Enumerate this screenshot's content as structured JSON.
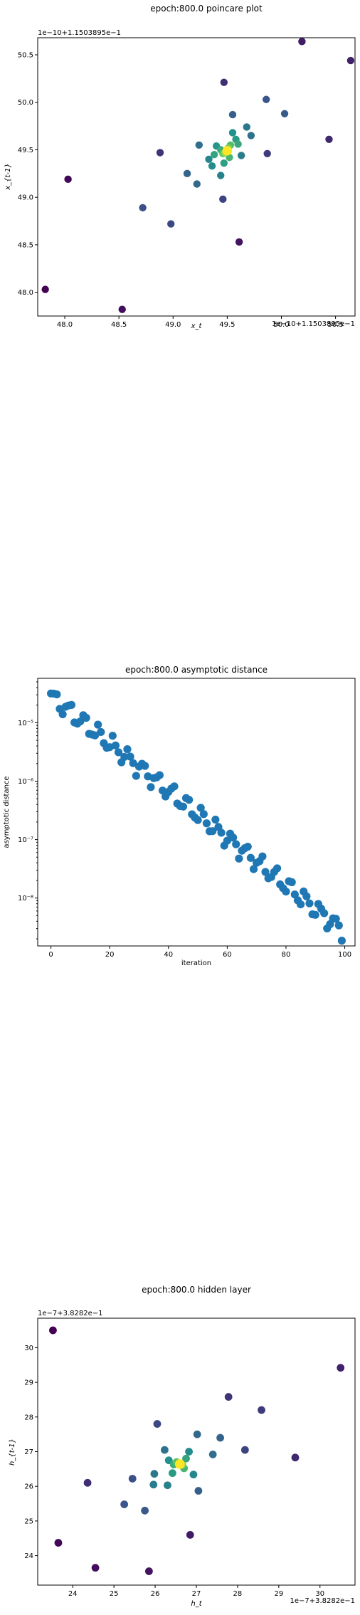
{
  "chart_data": [
    {
      "type": "scatter",
      "title": "epoch:800.0 poincare plot",
      "xlabel": "x_t",
      "ylabel": "x_{t-1}",
      "x_offset_text": "1e−10+1.1503895e−1",
      "y_offset_text": "1e−10+1.1503895e−1",
      "xlim": [
        47.75,
        50.68
      ],
      "ylim": [
        47.75,
        50.68
      ],
      "xticks": [
        48.0,
        48.5,
        49.0,
        49.5,
        50.0,
        50.5
      ],
      "xtick_labels": [
        "48.0",
        "48.5",
        "49.0",
        "49.5",
        "50.0",
        "50.5"
      ],
      "yticks": [
        48.0,
        48.5,
        49.0,
        49.5,
        50.0,
        50.5
      ],
      "ytick_labels": [
        "48.0",
        "48.5",
        "49.0",
        "49.5",
        "50.0",
        "50.5"
      ],
      "color_scale": "viridis (later iterations brighter)",
      "points": [
        {
          "x": 47.82,
          "y": 48.03,
          "c": 0.0
        },
        {
          "x": 48.03,
          "y": 49.19,
          "c": 0.02
        },
        {
          "x": 48.53,
          "y": 47.82,
          "c": 0.04
        },
        {
          "x": 49.61,
          "y": 48.53,
          "c": 0.06
        },
        {
          "x": 50.19,
          "y": 50.64,
          "c": 0.08
        },
        {
          "x": 50.64,
          "y": 50.44,
          "c": 0.1
        },
        {
          "x": 50.44,
          "y": 49.61,
          "c": 0.12
        },
        {
          "x": 49.47,
          "y": 50.21,
          "c": 0.14
        },
        {
          "x": 48.88,
          "y": 49.47,
          "c": 0.16
        },
        {
          "x": 49.87,
          "y": 49.46,
          "c": 0.18
        },
        {
          "x": 49.46,
          "y": 48.98,
          "c": 0.2
        },
        {
          "x": 48.98,
          "y": 48.72,
          "c": 0.22
        },
        {
          "x": 48.72,
          "y": 48.89,
          "c": 0.24
        },
        {
          "x": 49.86,
          "y": 50.03,
          "c": 0.26
        },
        {
          "x": 50.03,
          "y": 49.88,
          "c": 0.28
        },
        {
          "x": 49.55,
          "y": 49.87,
          "c": 0.3
        },
        {
          "x": 49.13,
          "y": 49.25,
          "c": 0.32
        },
        {
          "x": 49.22,
          "y": 49.14,
          "c": 0.34
        },
        {
          "x": 49.24,
          "y": 49.55,
          "c": 0.36
        },
        {
          "x": 49.72,
          "y": 49.65,
          "c": 0.38
        },
        {
          "x": 49.68,
          "y": 49.74,
          "c": 0.4
        },
        {
          "x": 49.63,
          "y": 49.44,
          "c": 0.42
        },
        {
          "x": 49.44,
          "y": 49.23,
          "c": 0.44
        },
        {
          "x": 49.33,
          "y": 49.4,
          "c": 0.46
        },
        {
          "x": 49.36,
          "y": 49.33,
          "c": 0.48
        },
        {
          "x": 49.55,
          "y": 49.68,
          "c": 0.5
        },
        {
          "x": 49.4,
          "y": 49.54,
          "c": 0.52
        },
        {
          "x": 49.58,
          "y": 49.61,
          "c": 0.54
        },
        {
          "x": 49.47,
          "y": 49.36,
          "c": 0.56
        },
        {
          "x": 49.38,
          "y": 49.45,
          "c": 0.58
        },
        {
          "x": 49.6,
          "y": 49.56,
          "c": 0.6
        },
        {
          "x": 49.44,
          "y": 49.5,
          "c": 0.62
        },
        {
          "x": 49.52,
          "y": 49.42,
          "c": 0.66
        },
        {
          "x": 49.53,
          "y": 49.55,
          "c": 0.7
        },
        {
          "x": 49.46,
          "y": 49.46,
          "c": 0.74
        },
        {
          "x": 49.51,
          "y": 49.52,
          "c": 0.8
        },
        {
          "x": 49.48,
          "y": 49.47,
          "c": 0.86
        },
        {
          "x": 49.5,
          "y": 49.49,
          "c": 1.0
        }
      ]
    },
    {
      "type": "scatter",
      "title": "epoch:800.0 asymptotic distance",
      "xlabel": "iteration",
      "ylabel": "asymptotic distance",
      "y_scale": "log",
      "xlim": [
        -4.5,
        103.5
      ],
      "ylim_log10": [
        -8.82,
        -4.24
      ],
      "xticks": [
        0,
        20,
        40,
        60,
        80,
        100
      ],
      "xtick_labels": [
        "0",
        "20",
        "40",
        "60",
        "80",
        "100"
      ],
      "yticks_log10": [
        -5,
        -6,
        -7,
        -8
      ],
      "ytick_labels": [
        "10⁻⁵",
        "10⁻⁶",
        "10⁻⁷",
        "10⁻⁸"
      ],
      "color": "#1f77b4",
      "series_log10_start": -4.55,
      "series_log10_end": -8.55,
      "n_points": 100
    },
    {
      "type": "scatter",
      "title": "epoch:800.0 hidden layer",
      "xlabel": "h_t",
      "ylabel": "h_{t-1}",
      "x_offset_text": "1e−7+3.8282e−1",
      "y_offset_text": "1e−7+3.8282e−1",
      "xlim": [
        23.15,
        30.85
      ],
      "ylim": [
        23.15,
        30.85
      ],
      "xticks": [
        24,
        25,
        26,
        27,
        28,
        29,
        30
      ],
      "xtick_labels": [
        "24",
        "25",
        "26",
        "27",
        "28",
        "29",
        "30"
      ],
      "yticks": [
        24,
        25,
        26,
        27,
        28,
        29,
        30
      ],
      "ytick_labels": [
        "24",
        "25",
        "26",
        "27",
        "28",
        "29",
        "30"
      ],
      "color_scale": "viridis (later iterations brighter)",
      "points": [
        {
          "x": 23.52,
          "y": 30.5,
          "c": 0.0
        },
        {
          "x": 23.65,
          "y": 24.37,
          "c": 0.02
        },
        {
          "x": 24.55,
          "y": 23.65,
          "c": 0.04
        },
        {
          "x": 25.85,
          "y": 23.55,
          "c": 0.06
        },
        {
          "x": 26.85,
          "y": 24.6,
          "c": 0.08
        },
        {
          "x": 30.5,
          "y": 29.42,
          "c": 0.1
        },
        {
          "x": 29.4,
          "y": 26.83,
          "c": 0.12
        },
        {
          "x": 24.36,
          "y": 26.1,
          "c": 0.14
        },
        {
          "x": 27.78,
          "y": 28.58,
          "c": 0.16
        },
        {
          "x": 28.58,
          "y": 28.2,
          "c": 0.18
        },
        {
          "x": 28.18,
          "y": 27.05,
          "c": 0.2
        },
        {
          "x": 26.05,
          "y": 27.8,
          "c": 0.22
        },
        {
          "x": 25.45,
          "y": 26.22,
          "c": 0.24
        },
        {
          "x": 25.25,
          "y": 25.48,
          "c": 0.26
        },
        {
          "x": 25.75,
          "y": 25.3,
          "c": 0.28
        },
        {
          "x": 27.05,
          "y": 25.87,
          "c": 0.3
        },
        {
          "x": 27.58,
          "y": 27.4,
          "c": 0.32
        },
        {
          "x": 27.02,
          "y": 27.5,
          "c": 0.34
        },
        {
          "x": 27.4,
          "y": 26.92,
          "c": 0.36
        },
        {
          "x": 26.23,
          "y": 27.05,
          "c": 0.38
        },
        {
          "x": 25.98,
          "y": 26.36,
          "c": 0.4
        },
        {
          "x": 25.96,
          "y": 26.05,
          "c": 0.42
        },
        {
          "x": 26.3,
          "y": 26.03,
          "c": 0.44
        },
        {
          "x": 26.93,
          "y": 26.34,
          "c": 0.46
        },
        {
          "x": 26.82,
          "y": 27.0,
          "c": 0.48
        },
        {
          "x": 26.33,
          "y": 26.75,
          "c": 0.5
        },
        {
          "x": 26.42,
          "y": 26.38,
          "c": 0.54
        },
        {
          "x": 26.75,
          "y": 26.8,
          "c": 0.58
        },
        {
          "x": 26.45,
          "y": 26.63,
          "c": 0.62
        },
        {
          "x": 26.7,
          "y": 26.52,
          "c": 0.66
        },
        {
          "x": 26.52,
          "y": 26.7,
          "c": 0.72
        },
        {
          "x": 26.66,
          "y": 26.62,
          "c": 0.8
        },
        {
          "x": 26.6,
          "y": 26.64,
          "c": 1.0
        }
      ]
    }
  ]
}
